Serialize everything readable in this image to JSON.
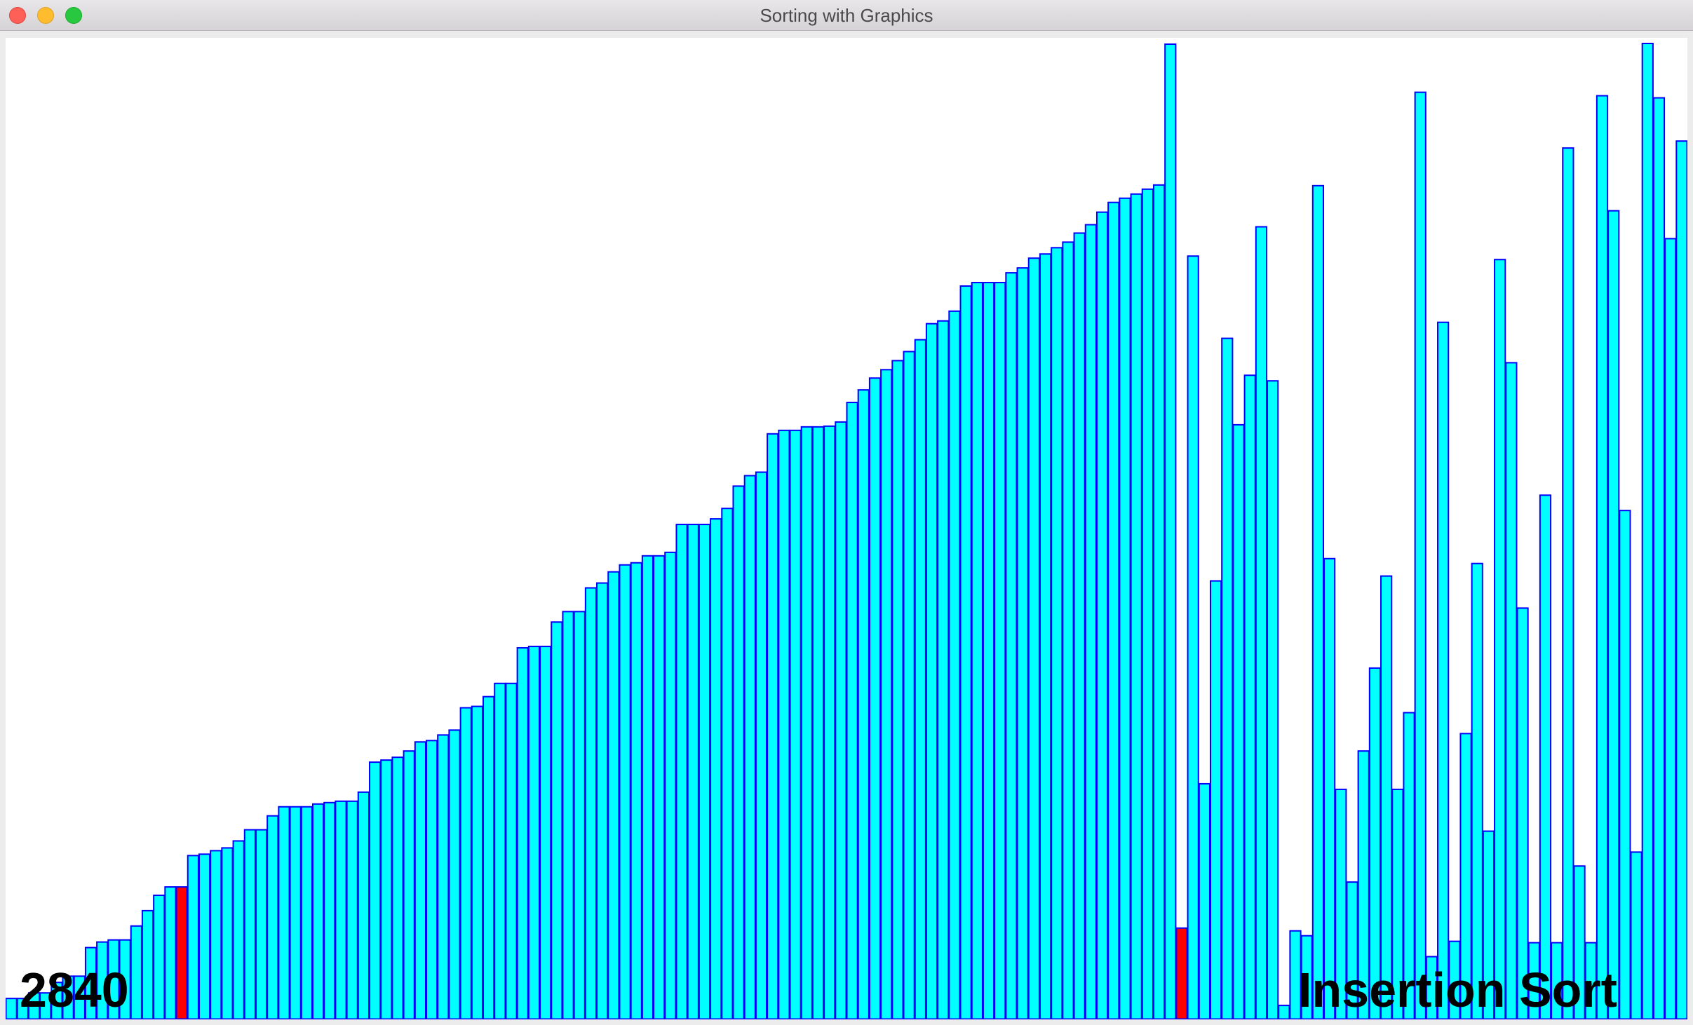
{
  "window": {
    "title": "Sorting with Graphics"
  },
  "colors": {
    "bar_fill": "#00ffff",
    "bar_stroke": "#0000ff",
    "highlight_fill": "#ff0000",
    "background": "#ffffff"
  },
  "status": {
    "count": "2840",
    "algorithm": "Insertion Sort"
  },
  "chart_data": {
    "type": "bar",
    "ymax": 1400,
    "highlighted_indices": [
      15,
      103
    ],
    "values": [
      30,
      30,
      38,
      38,
      53,
      62,
      62,
      103,
      111,
      114,
      114,
      134,
      156,
      178,
      190,
      190,
      235,
      237,
      242,
      246,
      256,
      272,
      272,
      292,
      305,
      305,
      305,
      309,
      311,
      313,
      313,
      326,
      369,
      372,
      376,
      385,
      398,
      400,
      408,
      415,
      447,
      449,
      463,
      482,
      482,
      533,
      535,
      535,
      570,
      585,
      585,
      619,
      626,
      642,
      652,
      655,
      665,
      665,
      670,
      710,
      710,
      710,
      718,
      733,
      765,
      780,
      785,
      840,
      845,
      845,
      850,
      850,
      851,
      857,
      885,
      903,
      920,
      932,
      945,
      958,
      975,
      998,
      1002,
      1016,
      1052,
      1057,
      1057,
      1057,
      1071,
      1078,
      1092,
      1098,
      1107,
      1115,
      1128,
      1140,
      1158,
      1172,
      1178,
      1184,
      1191,
      1197,
      1399,
      131,
      1095,
      338,
      629,
      977,
      853,
      924,
      1137,
      916,
      20,
      127,
      120,
      1196,
      661,
      330,
      197,
      385,
      504,
      636,
      330,
      440,
      1330,
      90,
      1000,
      112,
      410,
      654,
      270,
      1090,
      942,
      590,
      110,
      752,
      110,
      1250,
      220,
      110,
      1325,
      1160,
      730,
      240,
      1400,
      1322,
      1120,
      1260
    ]
  }
}
